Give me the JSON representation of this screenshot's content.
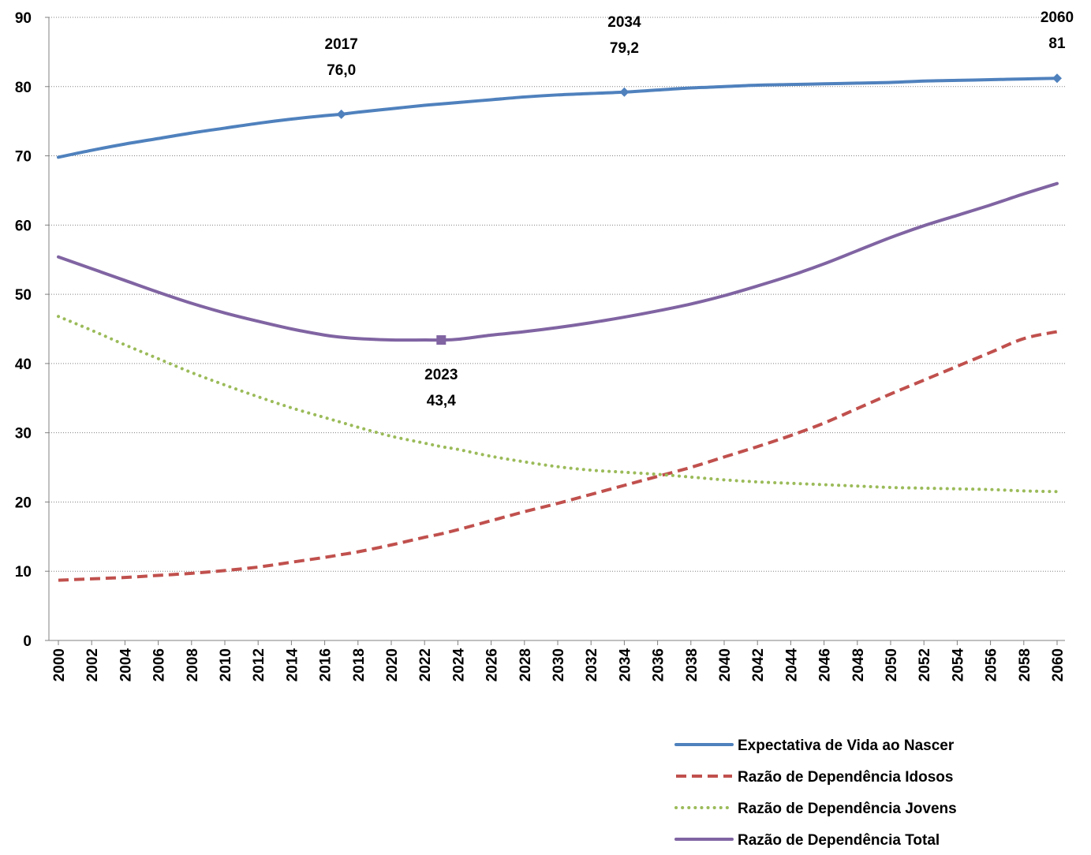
{
  "chart_data": {
    "type": "line",
    "x": [
      2000,
      2002,
      2004,
      2006,
      2008,
      2010,
      2012,
      2014,
      2016,
      2017,
      2018,
      2020,
      2022,
      2023,
      2024,
      2026,
      2028,
      2030,
      2032,
      2034,
      2036,
      2038,
      2040,
      2042,
      2044,
      2046,
      2048,
      2050,
      2052,
      2054,
      2056,
      2058,
      2060
    ],
    "xticks": [
      "2000",
      "2002",
      "2004",
      "2006",
      "2008",
      "2010",
      "2012",
      "2014",
      "2016",
      "2018",
      "2020",
      "2022",
      "2024",
      "2026",
      "2028",
      "2030",
      "2032",
      "2034",
      "2036",
      "2038",
      "2040",
      "2042",
      "2044",
      "2046",
      "2048",
      "2050",
      "2052",
      "2054",
      "2056",
      "2058",
      "2060"
    ],
    "yticks": [
      "0",
      "10",
      "20",
      "30",
      "40",
      "50",
      "60",
      "70",
      "80",
      "90"
    ],
    "ylim": [
      0,
      90
    ],
    "xlim": [
      2000,
      2060
    ],
    "grid": "horizontal-dotted",
    "legend_position": "bottom-right",
    "series": [
      {
        "name": "Expectativa de Vida ao Nascer",
        "color": "#4F81BD",
        "style": "solid",
        "values": [
          69.8,
          70.8,
          71.7,
          72.5,
          73.3,
          74.0,
          74.7,
          75.3,
          75.8,
          76.0,
          76.3,
          76.8,
          77.3,
          77.5,
          77.7,
          78.1,
          78.5,
          78.8,
          79.0,
          79.2,
          79.5,
          79.8,
          80.0,
          80.2,
          80.3,
          80.4,
          80.5,
          80.6,
          80.8,
          80.9,
          81.0,
          81.1,
          81.2
        ]
      },
      {
        "name": "Razão de Dependência Idosos",
        "color": "#C0504D",
        "style": "dashed",
        "values": [
          8.7,
          8.9,
          9.1,
          9.4,
          9.7,
          10.1,
          10.6,
          11.3,
          12.0,
          12.4,
          12.8,
          13.8,
          14.9,
          15.4,
          16.0,
          17.3,
          18.6,
          19.8,
          21.1,
          22.4,
          23.7,
          25.0,
          26.5,
          28.0,
          29.6,
          31.4,
          33.5,
          35.6,
          37.6,
          39.6,
          41.6,
          43.6,
          44.6
        ]
      },
      {
        "name": "Razão de Dependência Jovens",
        "color": "#9BBB59",
        "style": "dotted",
        "values": [
          46.8,
          44.8,
          42.7,
          40.7,
          38.7,
          36.9,
          35.2,
          33.6,
          32.2,
          31.5,
          30.8,
          29.5,
          28.5,
          28.0,
          27.6,
          26.6,
          25.8,
          25.1,
          24.6,
          24.3,
          24.0,
          23.6,
          23.2,
          22.9,
          22.7,
          22.5,
          22.3,
          22.1,
          22.0,
          21.9,
          21.8,
          21.6,
          21.5
        ]
      },
      {
        "name": "Razão de Dependência Total",
        "color": "#8064A2",
        "style": "solid",
        "values": [
          55.4,
          53.7,
          52.0,
          50.3,
          48.7,
          47.3,
          46.1,
          45.0,
          44.1,
          43.8,
          43.6,
          43.4,
          43.4,
          43.4,
          43.5,
          44.1,
          44.6,
          45.2,
          45.9,
          46.7,
          47.6,
          48.6,
          49.8,
          51.2,
          52.7,
          54.4,
          56.3,
          58.2,
          59.9,
          61.4,
          62.9,
          64.5,
          66.0
        ]
      }
    ],
    "annotations": [
      {
        "series": 0,
        "x": 2017,
        "y": 76.0,
        "year_label": "2017",
        "value_label": "76,0",
        "marker": "diamond",
        "placement": "above"
      },
      {
        "series": 0,
        "x": 2034,
        "y": 79.2,
        "year_label": "2034",
        "value_label": "79,2",
        "marker": "diamond",
        "placement": "above"
      },
      {
        "series": 0,
        "x": 2060,
        "y": 81.2,
        "year_label": "2060",
        "value_label": "81",
        "marker": "diamond",
        "placement": "above"
      },
      {
        "series": 3,
        "x": 2023,
        "y": 43.4,
        "year_label": "2023",
        "value_label": "43,4",
        "marker": "square",
        "placement": "below"
      }
    ]
  }
}
